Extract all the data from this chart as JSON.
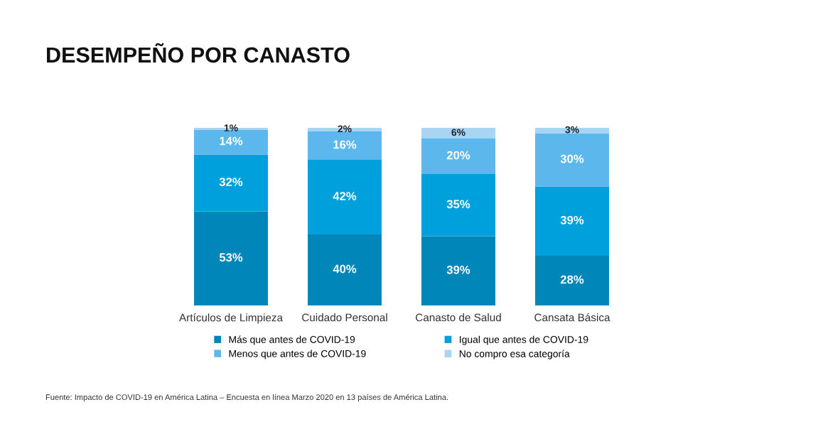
{
  "chart_data": {
    "type": "bar",
    "stacked": true,
    "title": "DESEMPEÑO POR CANASTO",
    "categories": [
      "Artículos de Limpieza",
      "Cuidado Personal",
      "Canasto de Salud",
      "Cansata Básica"
    ],
    "series": [
      {
        "name": "Más que antes de COVID-19",
        "color": "#0086b9",
        "values": [
          53,
          40,
          39,
          28
        ],
        "value_labels": [
          "53%",
          "40%",
          "39%",
          "28%"
        ]
      },
      {
        "name": "Igual que antes de COVID-19",
        "color": "#00a0dc",
        "values": [
          32,
          42,
          35,
          39
        ],
        "value_labels": [
          "32%",
          "42%",
          "35%",
          "39%"
        ]
      },
      {
        "name": "Menos que antes de COVID-19",
        "color": "#5cb8ec",
        "values": [
          14,
          16,
          20,
          30
        ],
        "value_labels": [
          "14%",
          "16%",
          "20%",
          "30%"
        ]
      },
      {
        "name": "No compro esa categoría",
        "color": "#a9d4f2",
        "values": [
          1,
          2,
          6,
          3
        ],
        "value_labels": [
          "1%",
          "2%",
          "6%",
          "3%"
        ]
      }
    ],
    "legend": "bottom",
    "grid": false,
    "annotations": [
      "Fuente: Impacto de COVID-19 en América Latina – Encuesta en línea Marzo 2020 en 13 países de América Latina."
    ]
  }
}
